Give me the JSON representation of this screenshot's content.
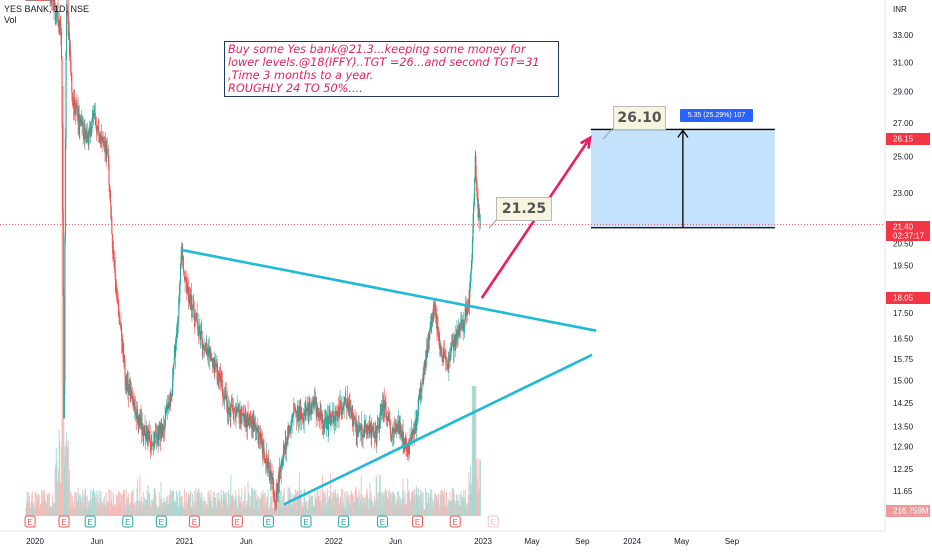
{
  "title": "YES BANK, 1D, NSE",
  "subtitle": "Vol",
  "currency": "INR",
  "note": "Buy some Yes bank@21.3...keeping some money for\nlower levels.@18(IFFY)..TGT =26...and second TGT=31\n,Time  3 months to a year.\nROUGHLY 24 TO 50%....",
  "callout_target": "26.10",
  "callout_entry": "21.25",
  "measure_label": "5.35 (25.29%) 107",
  "price_tags": {
    "last_price": "21.40",
    "countdown": "02:37:17",
    "marked_price": "26.15",
    "alt_price": "18.05",
    "volume": "216.759M"
  },
  "colors": {
    "up": "#26a69a",
    "down": "#ef5350",
    "trendline": "#1fbad6",
    "arrow": "#e91e63",
    "target_zone": "#bbdefb",
    "last_price": "#f23645"
  },
  "chart_data": {
    "type": "candlestick",
    "title": "YES BANK, 1D, NSE",
    "xlabel": "",
    "ylabel": "INR",
    "y_ticks": [
      33.0,
      31.0,
      29.0,
      27.0,
      25.0,
      23.0,
      20.5,
      19.5,
      17.5,
      16.5,
      15.75,
      15.0,
      14.25,
      13.5,
      12.9,
      12.25,
      11.65
    ],
    "x_ticks": [
      "2020",
      "Jun",
      "2021",
      "Jun",
      "2022",
      "Jun",
      "2023",
      "May",
      "Sep",
      "2024",
      "May",
      "Sep"
    ],
    "grid": false,
    "price_path": [
      [
        "2019-12-10",
        46.0
      ],
      [
        "2019-12-31",
        47.0
      ],
      [
        "2020-01-20",
        38.0
      ],
      [
        "2020-02-10",
        36.0
      ],
      [
        "2020-03-05",
        33.5
      ],
      [
        "2020-03-12",
        12.0
      ],
      [
        "2020-03-18",
        36.0
      ],
      [
        "2020-04-01",
        28.5
      ],
      [
        "2020-04-20",
        27.0
      ],
      [
        "2020-05-10",
        26.0
      ],
      [
        "2020-05-25",
        27.5
      ],
      [
        "2020-06-05",
        26.0
      ],
      [
        "2020-06-25",
        25.5
      ],
      [
        "2020-07-02",
        23.0
      ],
      [
        "2020-07-08",
        20.5
      ],
      [
        "2020-07-20",
        18.0
      ],
      [
        "2020-08-10",
        15.0
      ],
      [
        "2020-09-01",
        14.0
      ],
      [
        "2020-09-25",
        13.3
      ],
      [
        "2020-10-15",
        13.0
      ],
      [
        "2020-11-10",
        13.5
      ],
      [
        "2020-11-30",
        14.5
      ],
      [
        "2020-12-15",
        17.0
      ],
      [
        "2020-12-24",
        20.2
      ],
      [
        "2021-01-05",
        18.5
      ],
      [
        "2021-01-25",
        17.5
      ],
      [
        "2021-02-15",
        16.3
      ],
      [
        "2021-03-05",
        15.8
      ],
      [
        "2021-03-25",
        15.1
      ],
      [
        "2021-04-20",
        14.0
      ],
      [
        "2021-05-20",
        13.8
      ],
      [
        "2021-06-20",
        13.6
      ],
      [
        "2021-07-15",
        12.7
      ],
      [
        "2021-08-01",
        12.0
      ],
      [
        "2021-08-10",
        11.3
      ],
      [
        "2021-09-01",
        12.8
      ],
      [
        "2021-09-25",
        14.0
      ],
      [
        "2021-10-20",
        13.8
      ],
      [
        "2021-11-15",
        14.2
      ],
      [
        "2021-12-10",
        13.5
      ],
      [
        "2022-01-10",
        14.0
      ],
      [
        "2022-02-05",
        14.2
      ],
      [
        "2022-03-01",
        13.3
      ],
      [
        "2022-03-25",
        13.5
      ],
      [
        "2022-04-15",
        13.2
      ],
      [
        "2022-05-05",
        14.3
      ],
      [
        "2022-05-20",
        13.3
      ],
      [
        "2022-06-10",
        13.5
      ],
      [
        "2022-07-01",
        12.8
      ],
      [
        "2022-07-20",
        13.5
      ],
      [
        "2022-08-10",
        15.5
      ],
      [
        "2022-08-25",
        17.0
      ],
      [
        "2022-09-05",
        17.8
      ],
      [
        "2022-09-20",
        16.0
      ],
      [
        "2022-10-05",
        15.5
      ],
      [
        "2022-10-20",
        16.3
      ],
      [
        "2022-11-01",
        16.8
      ],
      [
        "2022-11-15",
        17.2
      ],
      [
        "2022-11-28",
        18.0
      ],
      [
        "2022-12-05",
        19.8
      ],
      [
        "2022-12-13",
        24.8
      ],
      [
        "2022-12-20",
        22.0
      ],
      [
        "2022-12-26",
        21.3
      ]
    ],
    "annotations": {
      "upper_trendline": {
        "start": [
          "2020-12-24",
          20.2
        ],
        "end": [
          "2023-10-05",
          16.8
        ]
      },
      "lower_trendline": {
        "start": [
          "2021-09-01",
          11.3
        ],
        "end": [
          "2023-09-25",
          15.9
        ]
      },
      "projection_arrow": {
        "start": [
          "2022-12-29",
          18.1
        ],
        "end": [
          "2023-09-20",
          26.1
        ]
      },
      "target_zone": {
        "x0": "2023-09-22",
        "x1": "2024-12-15",
        "y0": 21.25,
        "y1": 26.6
      },
      "entry_marker_price": 21.25,
      "target_marker_price": 26.1,
      "current_price": 21.4
    }
  }
}
